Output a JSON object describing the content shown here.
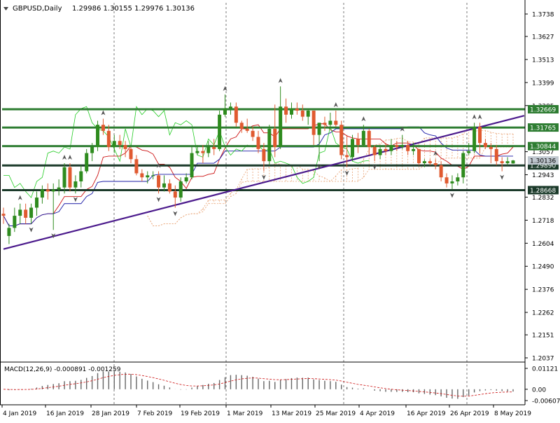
{
  "header": {
    "symbol": "GBPUSD,Daily",
    "ohlc": "1.29986 1.30155 1.29976 1.30136"
  },
  "macd": {
    "label": "MACD(12,26,9) -0.000891 -0.001259",
    "axis_ticks": [
      "0.01121",
      "0.00",
      "-0.006077"
    ]
  },
  "chart_data": {
    "type": "candlestick",
    "symbol": "GBPUSD",
    "timeframe": "Daily",
    "price_axis_ticks": [
      1.3738,
      1.3627,
      1.3513,
      1.3399,
      1.3285,
      1.3057,
      1.2943,
      1.2832,
      1.2718,
      1.2604,
      1.249,
      1.2376,
      1.2262,
      1.2151,
      1.2037
    ],
    "x_tick_labels": [
      "4 Jan 2019",
      "16 Jan 2019",
      "28 Jan 2019",
      "7 Feb 2019",
      "19 Feb 2019",
      "1 Mar 2019",
      "13 Mar 2019",
      "25 Mar 2019",
      "4 Apr 2019",
      "16 Apr 2019",
      "26 Apr 2019",
      "8 May 2019"
    ],
    "horizontal_levels": [
      {
        "label": "1.32669",
        "value": 1.32669
      },
      {
        "label": "1.31765",
        "value": 1.31765
      },
      {
        "label": "1.30844",
        "value": 1.30844
      },
      {
        "label": "1.29890",
        "value": 1.2989
      },
      {
        "label": "1.28668",
        "value": 1.28668
      }
    ],
    "current_price": {
      "label": "1.30136",
      "value": 1.30136
    },
    "trendline": {
      "start": {
        "date": "31 Dec 2018",
        "price": 1.2575
      },
      "end": {
        "date": "14 May 2019",
        "price": 1.3235
      }
    },
    "ohlc": [
      [
        "2 Jan 2019",
        1.275,
        1.278,
        1.27,
        1.274
      ],
      [
        "3 Jan 2019",
        1.264,
        1.27,
        1.26,
        1.268
      ],
      [
        "4 Jan 2019",
        1.268,
        1.278,
        1.266,
        1.274
      ],
      [
        "7 Jan 2019",
        1.274,
        1.28,
        1.27,
        1.277
      ],
      [
        "8 Jan 2019",
        1.277,
        1.28,
        1.27,
        1.273
      ],
      [
        "9 Jan 2019",
        1.273,
        1.28,
        1.27,
        1.278
      ],
      [
        "10 Jan 2019",
        1.278,
        1.286,
        1.274,
        1.283
      ],
      [
        "11 Jan 2019",
        1.283,
        1.289,
        1.28,
        1.287
      ],
      [
        "14 Jan 2019",
        1.287,
        1.29,
        1.282,
        1.286
      ],
      [
        "15 Jan 2019",
        1.286,
        1.29,
        1.267,
        1.287
      ],
      [
        "16 Jan 2019",
        1.287,
        1.292,
        1.284,
        1.288
      ],
      [
        "17 Jan 2019",
        1.288,
        1.3,
        1.285,
        1.298
      ],
      [
        "18 Jan 2019",
        1.298,
        1.3,
        1.286,
        1.288
      ],
      [
        "21 Jan 2019",
        1.288,
        1.294,
        1.285,
        1.291
      ],
      [
        "22 Jan 2019",
        1.291,
        1.299,
        1.288,
        1.296
      ],
      [
        "23 Jan 2019",
        1.296,
        1.307,
        1.295,
        1.305
      ],
      [
        "24 Jan 2019",
        1.305,
        1.31,
        1.301,
        1.308
      ],
      [
        "25 Jan 2019",
        1.308,
        1.321,
        1.306,
        1.319
      ],
      [
        "28 Jan 2019",
        1.319,
        1.322,
        1.314,
        1.316
      ],
      [
        "29 Jan 2019",
        1.316,
        1.319,
        1.306,
        1.308
      ],
      [
        "30 Jan 2019",
        1.308,
        1.314,
        1.305,
        1.311
      ],
      [
        "31 Jan 2019",
        1.311,
        1.314,
        1.307,
        1.309
      ],
      [
        "1 Feb 2019",
        1.309,
        1.311,
        1.303,
        1.307
      ],
      [
        "4 Feb 2019",
        1.307,
        1.308,
        1.3,
        1.302
      ],
      [
        "5 Feb 2019",
        1.302,
        1.304,
        1.294,
        1.295
      ],
      [
        "6 Feb 2019",
        1.295,
        1.297,
        1.291,
        1.293
      ],
      [
        "7 Feb 2019",
        1.293,
        1.296,
        1.29,
        1.294
      ],
      [
        "8 Feb 2019",
        1.294,
        1.296,
        1.292,
        1.294
      ],
      [
        "11 Feb 2019",
        1.294,
        1.296,
        1.285,
        1.288
      ],
      [
        "12 Feb 2019",
        1.288,
        1.294,
        1.286,
        1.29
      ],
      [
        "13 Feb 2019",
        1.29,
        1.292,
        1.285,
        1.286
      ],
      [
        "14 Feb 2019",
        1.286,
        1.289,
        1.278,
        1.283
      ],
      [
        "15 Feb 2019",
        1.283,
        1.293,
        1.281,
        1.291
      ],
      [
        "18 Feb 2019",
        1.291,
        1.295,
        1.29,
        1.293
      ],
      [
        "19 Feb 2019",
        1.293,
        1.308,
        1.292,
        1.305
      ],
      [
        "20 Feb 2019",
        1.305,
        1.309,
        1.304,
        1.306
      ],
      [
        "21 Feb 2019",
        1.306,
        1.309,
        1.3,
        1.305
      ],
      [
        "22 Feb 2019",
        1.305,
        1.311,
        1.303,
        1.308
      ],
      [
        "25 Feb 2019",
        1.308,
        1.312,
        1.304,
        1.307
      ],
      [
        "26 Feb 2019",
        1.307,
        1.326,
        1.306,
        1.324
      ],
      [
        "27 Feb 2019",
        1.324,
        1.334,
        1.323,
        1.327
      ],
      [
        "28 Feb 2019",
        1.327,
        1.33,
        1.324,
        1.328
      ],
      [
        "1 Mar 2019",
        1.328,
        1.33,
        1.318,
        1.32
      ],
      [
        "4 Mar 2019",
        1.32,
        1.321,
        1.315,
        1.317
      ],
      [
        "5 Mar 2019",
        1.317,
        1.322,
        1.315,
        1.316
      ],
      [
        "6 Mar 2019",
        1.316,
        1.318,
        1.311,
        1.313
      ],
      [
        "7 Mar 2019",
        1.313,
        1.316,
        1.305,
        1.307
      ],
      [
        "8 Mar 2019",
        1.307,
        1.31,
        1.296,
        1.301
      ],
      [
        "11 Mar 2019",
        1.301,
        1.319,
        1.299,
        1.317
      ],
      [
        "12 Mar 2019",
        1.317,
        1.329,
        1.303,
        1.308
      ],
      [
        "13 Mar 2019",
        1.308,
        1.338,
        1.307,
        1.328
      ],
      [
        "14 Mar 2019",
        1.328,
        1.332,
        1.32,
        1.324
      ],
      [
        "15 Mar 2019",
        1.324,
        1.33,
        1.322,
        1.327
      ],
      [
        "18 Mar 2019",
        1.327,
        1.33,
        1.324,
        1.326
      ],
      [
        "19 Mar 2019",
        1.326,
        1.329,
        1.321,
        1.323
      ],
      [
        "20 Mar 2019",
        1.323,
        1.327,
        1.319,
        1.326
      ],
      [
        "21 Mar 2019",
        1.326,
        1.326,
        1.309,
        1.314
      ],
      [
        "22 Mar 2019",
        1.314,
        1.32,
        1.301,
        1.32
      ],
      [
        "25 Mar 2019",
        1.32,
        1.323,
        1.316,
        1.319
      ],
      [
        "26 Mar 2019",
        1.319,
        1.325,
        1.317,
        1.321
      ],
      [
        "27 Mar 2019",
        1.321,
        1.326,
        1.318,
        1.319
      ],
      [
        "28 Mar 2019",
        1.319,
        1.321,
        1.302,
        1.304
      ],
      [
        "29 Mar 2019",
        1.304,
        1.314,
        1.298,
        1.303
      ],
      [
        "1 Apr 2019",
        1.303,
        1.314,
        1.301,
        1.312
      ],
      [
        "2 Apr 2019",
        1.312,
        1.315,
        1.305,
        1.309
      ],
      [
        "3 Apr 2019",
        1.309,
        1.319,
        1.308,
        1.316
      ],
      [
        "4 Apr 2019",
        1.316,
        1.317,
        1.304,
        1.308
      ],
      [
        "5 Apr 2019",
        1.308,
        1.309,
        1.301,
        1.304
      ],
      [
        "8 Apr 2019",
        1.304,
        1.308,
        1.302,
        1.307
      ],
      [
        "9 Apr 2019",
        1.307,
        1.31,
        1.304,
        1.306
      ],
      [
        "10 Apr 2019",
        1.306,
        1.312,
        1.304,
        1.309
      ],
      [
        "11 Apr 2019",
        1.309,
        1.311,
        1.306,
        1.308
      ],
      [
        "12 Apr 2019",
        1.308,
        1.314,
        1.307,
        1.309
      ],
      [
        "15 Apr 2019",
        1.309,
        1.311,
        1.304,
        1.306
      ],
      [
        "16 Apr 2019",
        1.306,
        1.31,
        1.304,
        1.307
      ],
      [
        "17 Apr 2019",
        1.307,
        1.307,
        1.299,
        1.3
      ],
      [
        "18 Apr 2019",
        1.3,
        1.302,
        1.298,
        1.301
      ],
      [
        "19 Apr 2019",
        1.301,
        1.302,
        1.299,
        1.3
      ],
      [
        "22 Apr 2019",
        1.3,
        1.302,
        1.297,
        1.299
      ],
      [
        "23 Apr 2019",
        1.299,
        1.301,
        1.291,
        1.293
      ],
      [
        "24 Apr 2019",
        1.293,
        1.295,
        1.288,
        1.29
      ],
      [
        "25 Apr 2019",
        1.29,
        1.294,
        1.287,
        1.291
      ],
      [
        "26 Apr 2019",
        1.291,
        1.295,
        1.289,
        1.293
      ],
      [
        "29 Apr 2019",
        1.293,
        1.306,
        1.29,
        1.305
      ],
      [
        "30 Apr 2019",
        1.305,
        1.31,
        1.304,
        1.306
      ],
      [
        "1 May 2019",
        1.306,
        1.32,
        1.305,
        1.318
      ],
      [
        "2 May 2019",
        1.318,
        1.32,
        1.305,
        1.31
      ],
      [
        "3 May 2019",
        1.31,
        1.312,
        1.307,
        1.308
      ],
      [
        "6 May 2019",
        1.308,
        1.31,
        1.3,
        1.307
      ],
      [
        "7 May 2019",
        1.307,
        1.309,
        1.299,
        1.301
      ],
      [
        "8 May 2019",
        1.301,
        1.303,
        1.296,
        1.3
      ],
      [
        "9 May 2019",
        1.3,
        1.303,
        1.299,
        1.301
      ],
      [
        "10 May 2019",
        1.29986,
        1.30155,
        1.29976,
        1.30136
      ]
    ]
  },
  "colors": {
    "bull": "#2e8b1e",
    "bear": "#e05a30",
    "level_line": "#2e7d32",
    "level_line_dark": "#1b3a2a",
    "trendline": "#4b1a8c",
    "blue_line": "#1a1aa6",
    "red_line": "#cc1111",
    "green_line": "#22cc22",
    "cloud": "#e8a070"
  }
}
